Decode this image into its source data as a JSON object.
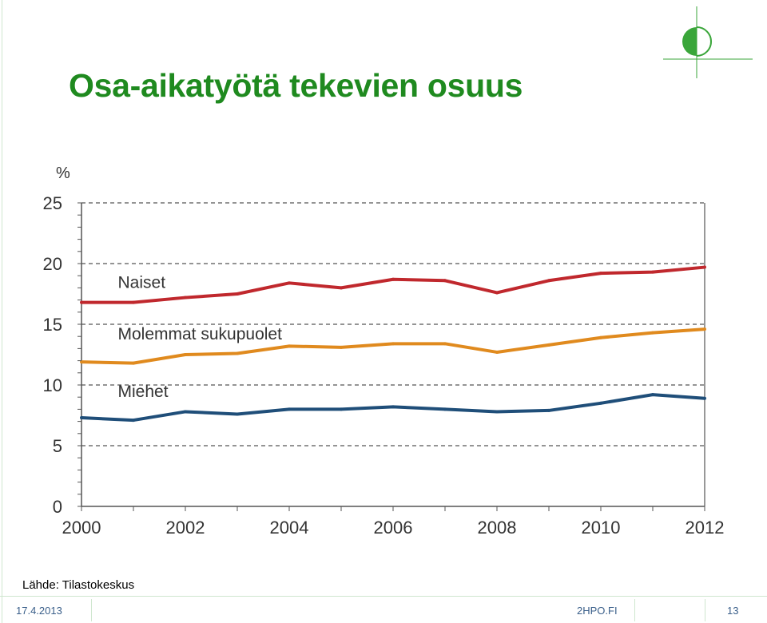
{
  "slide": {
    "title": "Osa-aikatyötä tekevien osuus",
    "source": "Lähde: Tilastokeskus",
    "footer_date": "17.4.2013",
    "footer_site": "2HPO.FI",
    "page_number": "13"
  },
  "colors": {
    "title": "#1f8a1f",
    "naiset": "#c0282d",
    "molemmat": "#e08a1e",
    "miehet": "#1f4e79",
    "grid": "#555555",
    "logo": "#3aa63a"
  },
  "chart_data": {
    "type": "line",
    "ylabel": "%",
    "ylim": [
      0,
      25
    ],
    "xlim": [
      2000,
      2012
    ],
    "yticks": [
      0,
      5,
      10,
      15,
      20,
      25
    ],
    "xticks": [
      2000,
      2002,
      2004,
      2006,
      2008,
      2010,
      2012
    ],
    "grid": "dashed horizontal",
    "x": [
      2000,
      2001,
      2002,
      2003,
      2004,
      2005,
      2006,
      2007,
      2008,
      2009,
      2010,
      2011,
      2012
    ],
    "series": [
      {
        "name": "Naiset",
        "color": "#c0282d",
        "values": [
          16.8,
          16.8,
          17.2,
          17.5,
          18.4,
          18.0,
          18.7,
          18.6,
          17.6,
          18.6,
          19.2,
          19.3,
          19.7
        ]
      },
      {
        "name": "Molemmat sukupuolet",
        "color": "#e08a1e",
        "values": [
          11.9,
          11.8,
          12.5,
          12.6,
          13.2,
          13.1,
          13.4,
          13.4,
          12.7,
          13.3,
          13.9,
          14.3,
          14.6
        ]
      },
      {
        "name": "Miehet",
        "color": "#1f4e79",
        "values": [
          7.3,
          7.1,
          7.8,
          7.6,
          8.0,
          8.0,
          8.2,
          8.0,
          7.8,
          7.9,
          8.5,
          9.2,
          8.9
        ]
      }
    ]
  }
}
